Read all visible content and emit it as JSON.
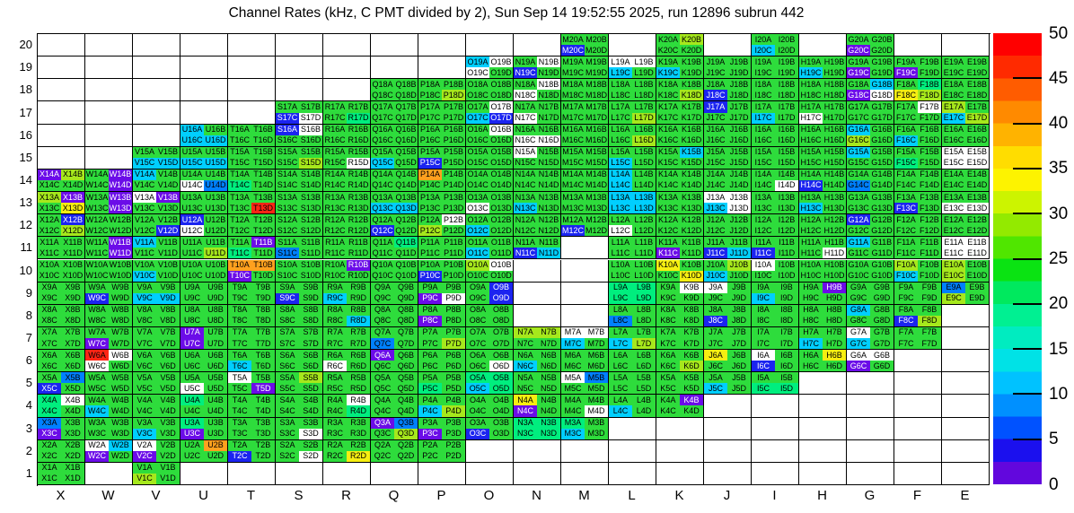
{
  "title": "Channel Rates (kHz, C PMT divided by 2), Sun Sep 14 19:52:55 2025, run 12896 subrun 442",
  "axes": {
    "columns": [
      "X",
      "W",
      "V",
      "U",
      "T",
      "S",
      "R",
      "Q",
      "P",
      "O",
      "N",
      "M",
      "L",
      "K",
      "J",
      "I",
      "H",
      "G",
      "F",
      "E"
    ],
    "rows": [
      20,
      19,
      18,
      17,
      16,
      15,
      14,
      13,
      12,
      11,
      10,
      9,
      8,
      7,
      6,
      5,
      4,
      3,
      2,
      1
    ],
    "suffixes": [
      "A",
      "B",
      "C",
      "D"
    ]
  },
  "palette": {
    "w": "#ffffff",
    "g": "#2edc3c",
    "s": "#00ee7e",
    "c": "#00cfff",
    "B": "#0080ff",
    "b": "#1b24f0",
    "v": "#6b0ce8",
    "y": "#a6e81c",
    "Y": "#f6ee11",
    "o": "#ffa01e",
    "r": "#ff2515"
  },
  "white_text_codes": "bv",
  "grid": {
    "cells": {
      "M20": "ggbg",
      "K20": "gygg",
      "I20": "ggcg",
      "G20": "ggvg",
      "O19": "cwwg",
      "N19": "gwbg",
      "M19": "gggg",
      "L19": "wwcg",
      "K19": "ggcg",
      "J19": "gggg",
      "I19": "gggg",
      "H19": "ggcg",
      "G19": "ggvg",
      "F19": "ggvg",
      "E19": "gggg",
      "Q18": "gggg",
      "P18": "gggy",
      "O18": "gggg",
      "N18": "gwwg",
      "M18": "gggg",
      "L18": "gggg",
      "K18": "gggy",
      "J18": "ggbg",
      "I18": "gggg",
      "H18": "gggg",
      "G18": "gcvw",
      "F18": "gsYy",
      "E18": "gggg",
      "S17": "ggbw",
      "R17": "gggs",
      "Q17": "gggg",
      "P17": "gggg",
      "O17": "gwcb",
      "N17": "ggwg",
      "M17": "gggg",
      "L17": "gggy",
      "K17": "gggg",
      "J17": "bggg",
      "I17": "ggcg",
      "H17": "ggwg",
      "G17": "gggg",
      "F17": "gwgg",
      "E17": "ygcy",
      "U16": "cgcc",
      "T16": "gggg",
      "S16": "bwgg",
      "R16": "gggg",
      "Q16": "gggg",
      "P16": "gggg",
      "O16": "gwgg",
      "N16": "ggww",
      "M16": "gggg",
      "L16": "gggy",
      "K16": "gggg",
      "J16": "gggg",
      "I16": "gggg",
      "H16": "gggg",
      "G16": "cgyg",
      "F16": "ggcg",
      "E16": "gggg",
      "V15": "ggcc",
      "U15": "ggcc",
      "T15": "gggg",
      "S15": "gggy",
      "R15": "gggw",
      "Q15": "ggcg",
      "P15": "ggbg",
      "O15": "gggg",
      "N15": "wggg",
      "M15": "gggg",
      "L15": "ggcg",
      "K15": "gcgg",
      "J15": "gggg",
      "I15": "gggg",
      "H15": "gggg",
      "G15": "cggg",
      "F15": "ggsg",
      "E15": "wwww",
      "X14": "vygg",
      "W14": "gvgv",
      "V14": "cggg",
      "U14": "ggwB",
      "T14": "ggsg",
      "S14": "gggg",
      "R14": "gggg",
      "Q14": "gggg",
      "P14": "oggg",
      "O14": "gggg",
      "N14": "gggg",
      "M14": "gggg",
      "L14": "cgcg",
      "K14": "gggg",
      "J14": "gggg",
      "I14": "gggw",
      "H14": "ggbg",
      "G14": "ggBg",
      "F14": "gggg",
      "E14": "gggg",
      "X13": "yvgY",
      "W13": "gvgv",
      "V13": "wvgg",
      "U13": "gggg",
      "T13": "gggr",
      "S13": "gggg",
      "R13": "gggg",
      "Q13": "ggcc",
      "P13": "gggg",
      "O13": "ggwg",
      "N13": "ggcg",
      "M13": "gggg",
      "L13": "cccc",
      "K13": "gggg",
      "J13": "wwcw",
      "I13": "gggg",
      "H13": "ggcg",
      "G13": "gggg",
      "F13": "ggbg",
      "E13": "ggww",
      "X12": "gbgy",
      "W12": "gggg",
      "V12": "gggb",
      "U12": "bgwg",
      "T12": "gggg",
      "S12": "gggg",
      "R12": "gggg",
      "Q12": "ggbg",
      "P12": "gwyg",
      "O12": "ggcg",
      "N12": "gggg",
      "M12": "ggbg",
      "L12": "ggwg",
      "K12": "gggg",
      "J12": "gggg",
      "I12": "gggg",
      "H12": "gggg",
      "G12": "bggg",
      "F12": "gggg",
      "E12": "gggg",
      "X11": "gggg",
      "W11": "gvgv",
      "V11": "cggg",
      "U11": "gggy",
      "T11": "gvsg",
      "S11": "ggBg",
      "R11": "gggg",
      "Q11": "gsgg",
      "P11": "gggg",
      "O11": "ggcg",
      "N11": "ggbc",
      "L11": "gggg",
      "K11": "ggvg",
      "J11": "ggbc",
      "I11": "ggbg",
      "H11": "gggw",
      "G11": "cggg",
      "F11": "gggg",
      "E11": "wwww",
      "X10": "gggg",
      "W10": "gggg",
      "V10": "ggcg",
      "U10": "gggg",
      "T10": "oovg",
      "S10": "gggg",
      "R10": "gvgg",
      "Q10": "gggg",
      "P10": "ggbg",
      "O10": "ywgg",
      "L10": "gggg",
      "K10": "YggY",
      "J10": "gycg",
      "I10": "wggg",
      "H10": "gggg",
      "G10": "gggg",
      "F10": "ygcg",
      "E10": "ygyg",
      "X9": "gggg",
      "W9": "ggbg",
      "V9": "ggcc",
      "U9": "gggg",
      "T9": "gggg",
      "S9": "ggbg",
      "R9": "ggcg",
      "Q9": "gggg",
      "P9": "ggvw",
      "O9": "gbgb",
      "L9": "ssss",
      "K9": "gwgg",
      "J9": "wggg",
      "I9": "ggcg",
      "H9": "gvgg",
      "G9": "gggg",
      "F9": "gggg",
      "E9": "Bgyg",
      "X8": "gggg",
      "W8": "gggg",
      "V8": "gggg",
      "U8": "gggg",
      "T8": "gggg",
      "S8": "gggg",
      "R8": "gggc",
      "Q8": "gggg",
      "P8": "ggvg",
      "O8": "gggg",
      "L8": "ggBg",
      "K8": "gggg",
      "J8": "ggbg",
      "I8": "gggg",
      "H8": "gggg",
      "G8": "cggg",
      "F8": "ggby",
      "X7": "gggg",
      "W7": "ggvg",
      "V7": "gggg",
      "U7": "vgvg",
      "T7": "gggg",
      "S7": "gggg",
      "R7": "gggg",
      "Q7": "ggBg",
      "P7": "gggy",
      "O7": "gggg",
      "N7": "yygg",
      "M7": "wwcg",
      "L7": "ggcy",
      "K7": "gggg",
      "J7": "gggg",
      "I7": "gggg",
      "H7": "ggcg",
      "G7": "wgcg",
      "F7": "gggg",
      "X6": "gggg",
      "W6": "rwwg",
      "V6": "gggg",
      "U6": "gggg",
      "T6": "ggcg",
      "S6": "gggg",
      "R6": "ggwg",
      "Q6": "vggg",
      "P6": "gggg",
      "O6": "gggw",
      "N6": "ggcg",
      "M6": "gggg",
      "L6": "gggg",
      "K6": "gggy",
      "J6": "Yggg",
      "I6": "wgbg",
      "H6": "gYgg",
      "G6": "wwvg",
      "X5": "gBbg",
      "W5": "gggg",
      "V5": "gggg",
      "U5": "ggwg",
      "T5": "wggv",
      "S5": "gygg",
      "R5": "gggg",
      "Q5": "gggg",
      "P5": "ggsg",
      "O5": "sscs",
      "N5": "gggg",
      "M5": "wBgg",
      "L5": "gggg",
      "K5": "gggg",
      "J5": "ggcg",
      "I5": "ggss",
      "X4": "swsg",
      "W4": "ggcg",
      "V4": "gggg",
      "U4": "sggg",
      "T4": "gggg",
      "S4": "gggg",
      "R4": "gwgs",
      "Q4": "gggg",
      "P4": "ggcy",
      "O4": "gggg",
      "N4": "Ygvg",
      "M4": "gggw",
      "L4": "ggcg",
      "K4": "gvgg",
      "X3": "Bgvg",
      "W3": "gggg",
      "V3": "ggcg",
      "U3": "sgvg",
      "T3": "gggg",
      "S3": "gggw",
      "R3": "gggg",
      "Q3": "vBgy",
      "P3": "ggvg",
      "O3": "ggbg",
      "N3": "ssss",
      "M3": "sgcg",
      "X2": "gggg",
      "W2": "wcvg",
      "V2": "wgvg",
      "U2": "gogg",
      "T2": "ggbg",
      "S2": "gggw",
      "R2": "gggY",
      "Q2": "gggg",
      "P2": "gggg",
      "X1": "gggg",
      "V1": "ggyg"
    }
  },
  "colorbar": {
    "min": 0,
    "max": 50,
    "ticks": [
      0,
      5,
      10,
      15,
      20,
      25,
      30,
      35,
      40,
      45,
      50
    ],
    "stops_top_to_bottom": [
      "#ff0000",
      "#ff2a00",
      "#ff5c00",
      "#ff8a00",
      "#ffb300",
      "#ffdd00",
      "#fdf300",
      "#ccf400",
      "#93ea00",
      "#50e600",
      "#0ae312",
      "#00e95e",
      "#00f092",
      "#00ecc0",
      "#00e2e6",
      "#00c2ff",
      "#0090ff",
      "#0052ff",
      "#1b10ee",
      "#6207dd"
    ]
  },
  "chart_data": {
    "type": "heatmap",
    "title": "Channel Rates (kHz, C PMT divided by 2), Sun Sep 14 19:52:55 2025, run 12896 subrun 442",
    "xlabel": "",
    "ylabel": "",
    "x_categories": [
      "X",
      "W",
      "V",
      "U",
      "T",
      "S",
      "R",
      "Q",
      "P",
      "O",
      "N",
      "M",
      "L",
      "K",
      "J",
      "I",
      "H",
      "G",
      "F",
      "E"
    ],
    "y_categories": [
      1,
      2,
      3,
      4,
      5,
      6,
      7,
      8,
      9,
      10,
      11,
      12,
      13,
      14,
      15,
      16,
      17,
      18,
      19,
      20
    ],
    "colorscale_range": [
      0,
      50
    ],
    "colorscale_ticks": [
      0,
      5,
      10,
      15,
      20,
      25,
      30,
      35,
      40,
      45,
      50
    ],
    "legend_position": "right-colorbar",
    "grid": "on",
    "note": "Each occupied (column,row) cell holds four PMT channels A,B (top) and C,D (bottom); color encodes rate in kHz per the right colorbar; white sub-cells are ~0; empty bordered cells have no channel.",
    "approx_value_by_code": {
      "w": 0,
      "v": 2,
      "b": 7,
      "B": 11,
      "c": 16,
      "s": 23,
      "g": 28,
      "y": 35,
      "Y": 38,
      "o": 42,
      "r": 49
    }
  }
}
